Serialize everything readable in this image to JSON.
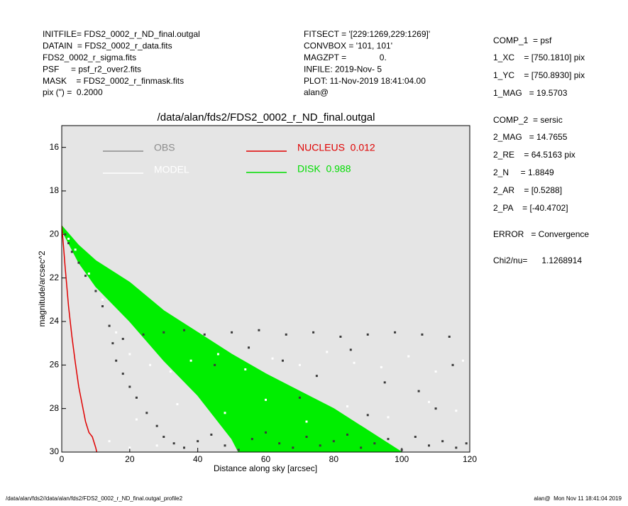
{
  "header_left": [
    "INITFILE= FDS2_0002_r_ND_final.outgal",
    "DATAIN  = FDS2_0002_r_data.fits",
    "FDS2_0002_r_sigma.fits",
    "PSF     = psf_r2_over2.fits",
    "MASK    = FDS2_0002_r_finmask.fits",
    "pix (\") =  0.2000"
  ],
  "header_middle": [
    "FITSECT = '[229:1269,229:1269]'",
    "CONVBOX = '101, 101'",
    "MAGZPT =              0.",
    "INFILE: 2019-Nov- 5",
    "PLOT: 11-Nov-2019 18:41:04.00",
    "alan@"
  ],
  "side_panel": [
    "COMP_1  = psf",
    "1_XC    = [750.1810] pix",
    "1_YC    = [750.8930] pix",
    "1_MAG   = 19.5703",
    "COMP_2  = sersic",
    "2_MAG   = 14.7655",
    "2_RE    = 64.5163 pix",
    "2_N     = 1.8849",
    "2_AR    = [0.5288]",
    "2_PA    = [-40.4702]",
    "ERROR   = Convergence",
    "Chi2/nu=      1.1268914"
  ],
  "footer_left": "/data/alan/fds2//data/alan/fds2/FDS2_0002_r_ND_final.outgal_profile2",
  "footer_right": "alan@  Mon Nov 11 18:41:04 2019",
  "chart_data": {
    "type": "scatter",
    "title": "/data/alan/fds2/FDS2_0002_r_ND_final.outgal",
    "x_label": "Distance along sky [arcsec]",
    "y_label": "magnitude/arcsec^2",
    "xlim": [
      0,
      120
    ],
    "ylim": [
      30,
      15
    ],
    "xticks": [
      0,
      20,
      40,
      60,
      80,
      100,
      120
    ],
    "yticks": [
      16,
      18,
      20,
      22,
      24,
      26,
      28,
      30
    ],
    "series": [
      {
        "name": "OBS",
        "type": "scatter",
        "color": "#3a3a3a",
        "legend_color": "#8c8c8c",
        "x": [
          1,
          2,
          3,
          5,
          7,
          10,
          12,
          14,
          15,
          16,
          18,
          20,
          22,
          25,
          28,
          30,
          33,
          36,
          40,
          44,
          48,
          52,
          56,
          60,
          64,
          68,
          72,
          76,
          80,
          84,
          88,
          92,
          96,
          100,
          104,
          108,
          112,
          116,
          119,
          18,
          24,
          30,
          36,
          42,
          50,
          58,
          66,
          74,
          82,
          90,
          98,
          106,
          114,
          45,
          55,
          65,
          75,
          85,
          95,
          105,
          115,
          70,
          90,
          110
        ],
        "values": [
          20.0,
          20.4,
          20.8,
          21.3,
          21.9,
          22.6,
          23.3,
          24.2,
          25.0,
          25.8,
          26.4,
          27.0,
          27.5,
          28.2,
          28.8,
          29.3,
          29.6,
          29.8,
          29.5,
          29.2,
          29.7,
          29.9,
          29.4,
          29.1,
          29.6,
          29.8,
          29.3,
          29.7,
          29.5,
          29.2,
          29.8,
          29.6,
          29.4,
          29.9,
          29.3,
          29.7,
          29.5,
          29.8,
          29.6,
          24.8,
          24.6,
          24.5,
          24.4,
          24.6,
          24.5,
          24.4,
          24.6,
          24.5,
          24.7,
          24.6,
          24.5,
          24.6,
          24.7,
          26.0,
          25.2,
          25.8,
          26.5,
          25.3,
          26.8,
          27.2,
          26.0,
          27.5,
          28.3,
          28.0
        ]
      },
      {
        "name": "MODEL",
        "type": "scatter",
        "color": "#ffffff",
        "legend_color": "#ffffff",
        "x": [
          2,
          4,
          8,
          12,
          16,
          20,
          26,
          32,
          38,
          46,
          54,
          62,
          70,
          78,
          86,
          94,
          102,
          110,
          118,
          22,
          34,
          48,
          60,
          72,
          84,
          96,
          108,
          116,
          14,
          20,
          28
        ],
        "values": [
          20.2,
          20.7,
          21.8,
          23.0,
          24.5,
          25.5,
          26.0,
          26.3,
          25.8,
          25.5,
          26.2,
          25.7,
          26.0,
          25.4,
          25.9,
          26.1,
          25.6,
          26.3,
          25.8,
          28.5,
          27.8,
          28.2,
          27.6,
          28.6,
          27.9,
          28.4,
          27.7,
          28.1,
          29.5,
          29.8,
          29.7
        ]
      },
      {
        "name": "NUCLEUS  0.012",
        "type": "line",
        "color": "#e00000",
        "legend_color": "#e00000",
        "x": [
          0,
          0.5,
          1,
          2,
          3,
          4,
          5,
          6,
          7,
          8,
          9,
          10,
          10.3
        ],
        "values": [
          19.6,
          20.5,
          21.5,
          23.3,
          24.7,
          25.9,
          27.0,
          27.8,
          28.6,
          29.1,
          29.3,
          29.8,
          30
        ]
      },
      {
        "name": "DISK  0.988",
        "type": "band",
        "color": "#00ee00",
        "legend_color": "#00dd00",
        "x": [
          0,
          5,
          10,
          20,
          30,
          40,
          50,
          60,
          70,
          80,
          90,
          100
        ],
        "values": [
          19.6,
          20.5,
          21.2,
          22.2,
          23.5,
          24.5,
          25.5,
          26.4,
          27.2,
          28.0,
          29.0,
          30.0
        ],
        "x_low": [
          0,
          5,
          10,
          20,
          30,
          40,
          50,
          52
        ],
        "values_low": [
          19.8,
          21.3,
          22.4,
          24.0,
          25.8,
          27.4,
          29.4,
          30
        ]
      }
    ]
  }
}
